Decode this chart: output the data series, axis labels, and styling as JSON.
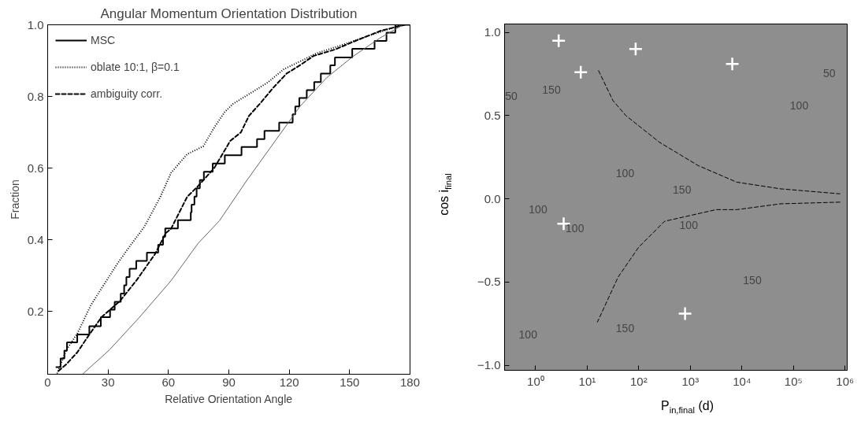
{
  "chart_data": [
    {
      "type": "line",
      "title": "Angular Momentum Orientation Distribution",
      "xlabel": "Relative Orientation Angle",
      "ylabel": "Fraction",
      "xlim": [
        0,
        180
      ],
      "ylim": [
        0.025,
        1.0
      ],
      "xticks": [
        0,
        30,
        60,
        90,
        120,
        150,
        180
      ],
      "yticks": [
        0.2,
        0.4,
        0.6,
        0.8,
        {
          "value": 1.0,
          "label": "1.0"
        }
      ],
      "grid": false,
      "legend": "top left",
      "series": [
        {
          "name": "MSC",
          "type": "step",
          "color": "#000000",
          "line_style": "solid",
          "x": [
            4,
            6.4,
            8.3,
            9.6,
            14.7,
            20.7,
            26.4,
            31,
            33.3,
            36.3,
            38,
            39.1,
            40.7,
            44,
            49.3,
            54.9,
            57.3,
            58.4,
            64.7,
            71.1,
            71.5,
            72.9,
            74,
            75.6,
            77.6,
            82,
            88,
            96.3,
            104,
            107.7,
            115,
            121.7,
            123,
            125,
            128.7,
            132.4,
            135.7,
            140.4,
            142.7,
            151.3,
            162.4,
            168.3,
            172.7,
            180
          ],
          "values": [
            0.045,
            0.069,
            0.091,
            0.114,
            0.136,
            0.159,
            0.184,
            0.205,
            0.227,
            0.25,
            0.273,
            0.296,
            0.319,
            0.341,
            0.364,
            0.386,
            0.409,
            0.432,
            0.455,
            0.477,
            0.498,
            0.521,
            0.544,
            0.567,
            0.59,
            0.613,
            0.636,
            0.659,
            0.681,
            0.704,
            0.727,
            0.75,
            0.772,
            0.796,
            0.818,
            0.84,
            0.864,
            0.887,
            0.909,
            0.933,
            0.955,
            0.978,
            1.0,
            1.0
          ]
        },
        {
          "name": "oblate 10:1, β=0.1",
          "color": "#000000",
          "line_style": "dotted",
          "x": [
            4.7,
            9.3,
            14.7,
            21.3,
            26.7,
            34.7,
            41.3,
            48,
            56,
            61.3,
            69.3,
            77.3,
            82.7,
            88,
            92,
            102.7,
            109.3,
            117.3,
            128,
            133.3,
            145.3,
            158.7,
            176
          ],
          "values": [
            0.027,
            0.093,
            0.138,
            0.216,
            0.264,
            0.334,
            0.386,
            0.436,
            0.52,
            0.587,
            0.639,
            0.661,
            0.713,
            0.757,
            0.779,
            0.816,
            0.839,
            0.876,
            0.905,
            0.92,
            0.942,
            0.968,
            1.0
          ]
        },
        {
          "name": "ambiguity corr.",
          "color": "#000000",
          "line_style": "dashed",
          "x": [
            5.3,
            9.3,
            14.7,
            20,
            26.7,
            36,
            44,
            53.3,
            58.7,
            61.3,
            69.3,
            74.7,
            82.7,
            90.7,
            96,
            100,
            105.3,
            112,
            118.7,
            125.3,
            132,
            142.7,
            152,
            165.3,
            177.3
          ],
          "values": [
            0.034,
            0.053,
            0.086,
            0.13,
            0.184,
            0.23,
            0.286,
            0.36,
            0.419,
            0.431,
            0.52,
            0.55,
            0.6,
            0.676,
            0.7,
            0.746,
            0.779,
            0.824,
            0.864,
            0.887,
            0.913,
            0.931,
            0.953,
            0.983,
            1.0
          ]
        },
        {
          "color": "#666666",
          "line_style": "solid",
          "x": [
            17.3,
            30.7,
            45.3,
            61.3,
            74.7,
            85.3,
            98.7,
            112,
            125.3,
            138.7,
            152,
            165.3,
            176
          ],
          "values": [
            0.025,
            0.093,
            0.182,
            0.286,
            0.39,
            0.453,
            0.564,
            0.668,
            0.772,
            0.853,
            0.913,
            0.964,
            0.998
          ]
        }
      ]
    },
    {
      "type": "scatter",
      "xlabel": "P$_{in,final}$ (d)",
      "ylabel": "cos i$_{final}$",
      "log": "x",
      "xlim": [
        0.25,
        1100000
      ],
      "ylim": [
        -1.03,
        1.05
      ],
      "xticks": [
        {
          "value": 1,
          "label": "10⁰"
        },
        {
          "value": 10,
          "label": "10¹"
        },
        {
          "value": 100,
          "label": "10²"
        },
        {
          "value": 1000,
          "label": "10³"
        },
        {
          "value": 10000,
          "label": "10⁴"
        },
        {
          "value": 100000,
          "label": "10⁵"
        },
        {
          "value": 1000000,
          "label": "10⁶"
        }
      ],
      "yticks": [
        {
          "value": -1,
          "label": "−1.0"
        },
        {
          "value": -0.5,
          "label": "−0.5"
        },
        {
          "value": 0,
          "label": "0.0"
        },
        {
          "value": 0.5,
          "label": "0.5"
        },
        {
          "value": 1,
          "label": "1.0"
        }
      ],
      "grid": false,
      "series": [
        {
          "marker": "cross",
          "color": "#ffffff",
          "x": [
            2.8,
            7.5,
            87,
            6500,
            3.5,
            790
          ],
          "values": [
            0.95,
            0.76,
            0.9,
            0.81,
            -0.15,
            -0.69
          ]
        },
        {
          "type": "line",
          "color": "#000000",
          "line_style": "dashed",
          "x": [
            16.6,
            31.6,
            56.2,
            251,
            1413,
            7943,
            56234,
            794328
          ],
          "values": [
            0.77,
            0.59,
            0.5,
            0.34,
            0.2,
            0.1,
            0.06,
            0.03
          ]
        },
        {
          "type": "line",
          "color": "#000000",
          "line_style": "dashed",
          "x": [
            794328,
            56234,
            7943,
            3162,
            316,
            100,
            39.8,
            15.8
          ],
          "values": [
            -0.02,
            -0.03,
            -0.065,
            -0.065,
            -0.135,
            -0.29,
            -0.47,
            -0.74
          ]
        }
      ],
      "annotations": [
        "150",
        "50",
        "100",
        "150",
        "100",
        "50",
        "100",
        "100",
        "100",
        "150",
        "150",
        "100"
      ]
    }
  ]
}
